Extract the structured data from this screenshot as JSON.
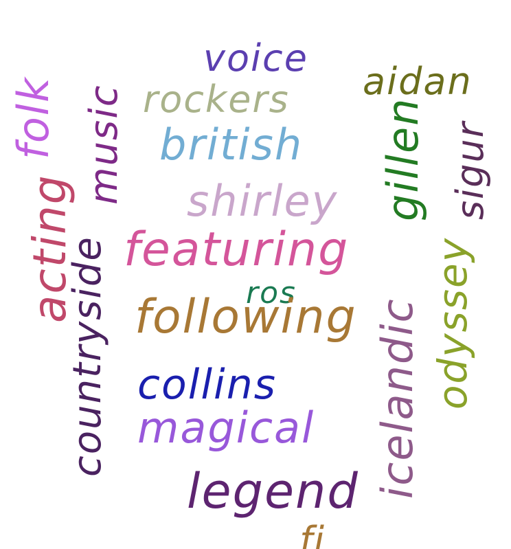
{
  "words": [
    {
      "id": "voice",
      "text": "voice",
      "color": "#5b3fb0"
    },
    {
      "id": "rockers",
      "text": "rockers",
      "color": "#a9b28a"
    },
    {
      "id": "british",
      "text": "british",
      "color": "#72add3"
    },
    {
      "id": "shirley",
      "text": "shirley",
      "color": "#c9a6cb"
    },
    {
      "id": "featuring",
      "text": "featuring",
      "color": "#d4559a"
    },
    {
      "id": "ros",
      "text": "ros",
      "color": "#1a7a52"
    },
    {
      "id": "following",
      "text": "following",
      "color": "#a87835"
    },
    {
      "id": "collins",
      "text": "collins",
      "color": "#1a1fae"
    },
    {
      "id": "magical",
      "text": "magical",
      "color": "#9858da"
    },
    {
      "id": "legend",
      "text": "legend",
      "color": "#5d2470"
    },
    {
      "id": "aidan",
      "text": "aidan",
      "color": "#6b6e1c"
    },
    {
      "id": "gillen",
      "text": "gillen",
      "color": "#237b23"
    },
    {
      "id": "sigur",
      "text": "sigur",
      "color": "#5a2e59"
    },
    {
      "id": "odyssey",
      "text": "odyssey",
      "color": "#8aa22a"
    },
    {
      "id": "icelandic",
      "text": "icelandic",
      "color": "#8e5a8a"
    },
    {
      "id": "folk",
      "text": "folk",
      "color": "#c060e0"
    },
    {
      "id": "acting",
      "text": "acting",
      "color": "#c0486a"
    },
    {
      "id": "music",
      "text": "music",
      "color": "#7e2a87"
    },
    {
      "id": "countryside",
      "text": "countryside",
      "color": "#4a2260"
    },
    {
      "id": "partial",
      "text": "fi",
      "color": "#a87835"
    }
  ]
}
